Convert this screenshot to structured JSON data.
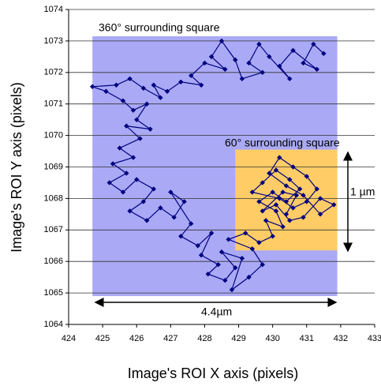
{
  "chart_data": {
    "type": "scatter",
    "xlabel": "Image's ROI X axis (pixels)",
    "ylabel": "Image's ROI Y axis (pixels)",
    "xlim": [
      424,
      433
    ],
    "xticks": [
      424,
      425,
      426,
      427,
      428,
      429,
      430,
      431,
      432,
      433
    ],
    "ylim": [
      1064,
      1074
    ],
    "yticks": [
      1064,
      1065,
      1066,
      1067,
      1068,
      1069,
      1070,
      1071,
      1072,
      1073,
      1074
    ],
    "grid": true,
    "regions": [
      {
        "xlim": [
          424.7,
          431.9
        ],
        "ylim": [
          1064.9,
          1073.15
        ],
        "color": "#a9a9f5"
      },
      {
        "xlim": [
          428.9,
          431.9
        ],
        "ylim": [
          1066.35,
          1069.55
        ],
        "color": "#ffcc66"
      }
    ],
    "annotations": [
      "360° surrounding square",
      "60° surrounding square",
      "1 µm",
      "4.4µm"
    ],
    "x": [
      431.5,
      431.2,
      430.9,
      431.3,
      430.6,
      430.2,
      430.5,
      429.9,
      429.6,
      429.3,
      429.7,
      429.1,
      428.9,
      428.5,
      428.2,
      428.6,
      428.0,
      427.6,
      427.9,
      427.3,
      426.9,
      426.5,
      426.7,
      426.2,
      425.8,
      425.4,
      424.7,
      425.1,
      425.6,
      425.9,
      426.3,
      426.0,
      426.4,
      425.7,
      426.1,
      425.5,
      425.9,
      425.3,
      425.7,
      425.2,
      425.6,
      426.0,
      426.5,
      426.2,
      425.8,
      426.3,
      426.7,
      427.1,
      427.4,
      427.0,
      427.6,
      427.3,
      427.8,
      428.2,
      427.9,
      428.4,
      428.1,
      428.6,
      428.9,
      428.5,
      429.1,
      428.8,
      429.3,
      429.7,
      429.4,
      428.7,
      429.2,
      429.6,
      430.0,
      429.8,
      430.3,
      430.1,
      429.6,
      430.0,
      430.4,
      430.8,
      430.5,
      430.1,
      429.7,
      429.4,
      430.2,
      430.6,
      431.0,
      431.3,
      431.0,
      430.6,
      430.2,
      429.9,
      430.4,
      430.9,
      431.4,
      431.8,
      431.4,
      430.9,
      430.5,
      430.1,
      429.7,
      430.3,
      430.7,
      430.4
    ],
    "series": [
      {
        "color": "#000080",
        "values": [
          1072.6,
          1072.9,
          1072.3,
          1072.1,
          1072.7,
          1072.2,
          1071.8,
          1072.5,
          1072.9,
          1072.3,
          1072.0,
          1071.8,
          1072.4,
          1073.0,
          1072.5,
          1072.1,
          1072.3,
          1071.9,
          1071.6,
          1071.7,
          1071.4,
          1071.6,
          1071.2,
          1071.5,
          1071.8,
          1071.6,
          1071.55,
          1071.4,
          1071.1,
          1070.8,
          1071.0,
          1070.5,
          1070.2,
          1070.3,
          1069.9,
          1069.6,
          1069.3,
          1069.1,
          1068.8,
          1068.5,
          1068.2,
          1068.6,
          1068.3,
          1067.9,
          1067.6,
          1067.3,
          1067.7,
          1067.4,
          1067.9,
          1068.2,
          1067.2,
          1066.8,
          1066.5,
          1066.9,
          1066.2,
          1065.9,
          1065.6,
          1065.4,
          1065.8,
          1066.3,
          1066.1,
          1065.1,
          1065.5,
          1065.9,
          1066.4,
          1066.7,
          1066.9,
          1066.6,
          1066.8,
          1067.3,
          1067.1,
          1067.6,
          1067.9,
          1068.2,
          1067.9,
          1068.3,
          1068.6,
          1068.9,
          1068.5,
          1068.2,
          1068.0,
          1067.7,
          1067.9,
          1068.3,
          1068.7,
          1069.0,
          1069.3,
          1068.8,
          1068.4,
          1068.1,
          1067.5,
          1067.8,
          1068.0,
          1067.4,
          1067.3,
          1067.8,
          1067.6,
          1068.2,
          1068.1,
          1067.5
        ]
      }
    ]
  }
}
